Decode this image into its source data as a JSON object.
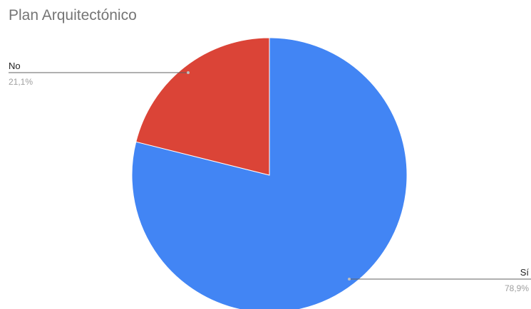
{
  "chart_data": {
    "type": "pie",
    "title": "Plan Arquitectónico",
    "slices": [
      {
        "label": "Sí",
        "value": 78.9,
        "value_label": "78,9%",
        "color": "#4285f4"
      },
      {
        "label": "No",
        "value": 21.1,
        "value_label": "21,1%",
        "color": "#db4437"
      }
    ],
    "start_angle_deg": 0,
    "direction": "clockwise",
    "legend": "labeled slices with leader lines"
  }
}
